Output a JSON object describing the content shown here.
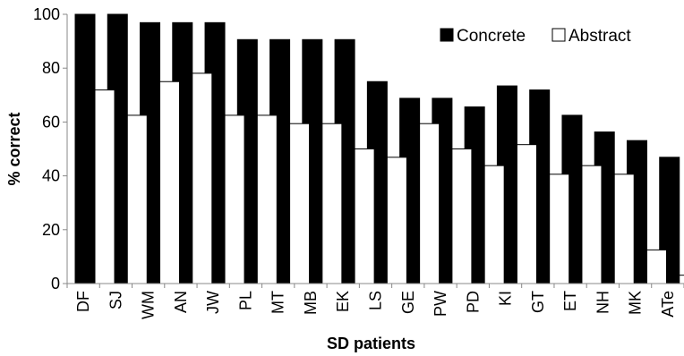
{
  "chart_data": {
    "type": "bar",
    "xlabel": "SD patients",
    "ylabel": "% correct",
    "ylim": [
      0,
      100
    ],
    "yticks": [
      "0",
      "20",
      "40",
      "60",
      "80",
      "100"
    ],
    "grid": false,
    "legend_position": "top-right",
    "categories": [
      "DF",
      "SJ",
      "WM",
      "AN",
      "JW",
      "PL",
      "MT",
      "MB",
      "EK",
      "LS",
      "GE",
      "PW",
      "PD",
      "KI",
      "GT",
      "ET",
      "NH",
      "MK",
      "ATe"
    ],
    "series": [
      {
        "name": "Concrete",
        "color": "#000000",
        "values": [
          100,
          100,
          96.9,
          96.9,
          96.9,
          90.6,
          90.6,
          90.6,
          90.6,
          75,
          68.8,
          68.8,
          65.6,
          73.4,
          71.9,
          62.5,
          56.3,
          53.1,
          46.9
        ]
      },
      {
        "name": "Abstract",
        "color": "#ffffff",
        "values": [
          71.9,
          62.5,
          75,
          78.1,
          62.5,
          62.5,
          59.4,
          59.4,
          50,
          46.9,
          59.4,
          50,
          43.8,
          51.6,
          40.6,
          43.8,
          40.6,
          12.5,
          3.1
        ]
      }
    ]
  }
}
